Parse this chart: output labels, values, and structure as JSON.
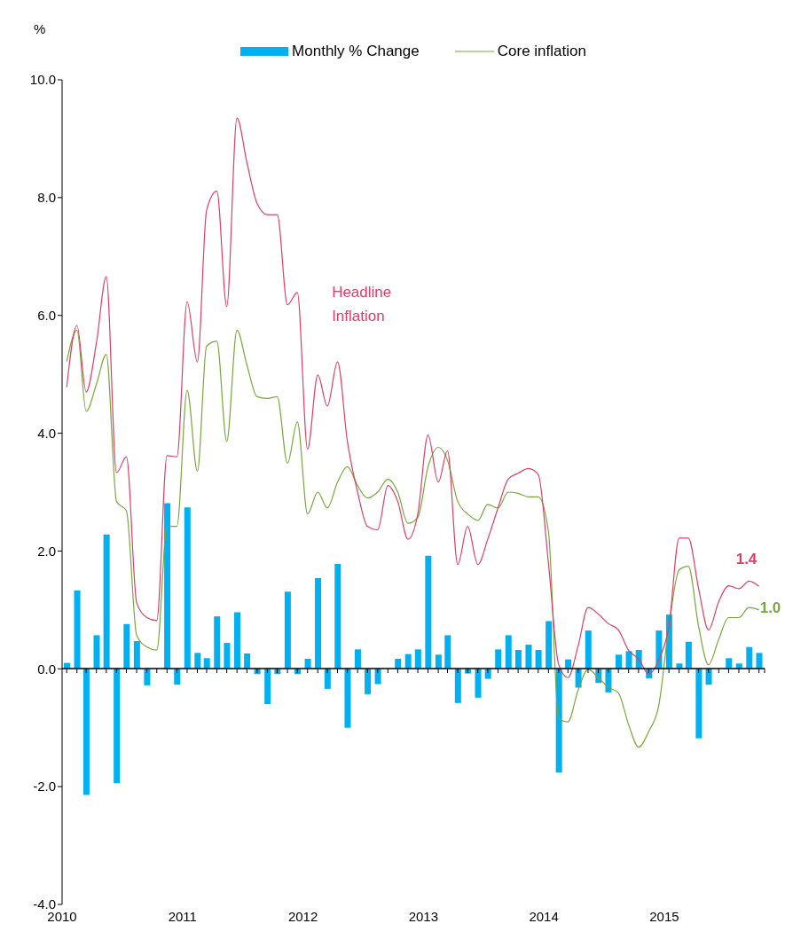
{
  "chart_data": {
    "type": "bar",
    "ylabel": "%",
    "x": [
      "2010-01-15",
      "2010-02-15",
      "2010-03-15",
      "2010-04-15",
      "2010-05-15",
      "2010-06-15",
      "2010-07-15",
      "2010-08-15",
      "2010-09-15",
      "2010-10-15",
      "2010-11-15",
      "2010-12-15",
      "2011-01-15",
      "2011-02-15",
      "2011-03-15",
      "2011-04-15",
      "2011-05-15",
      "2011-06-15",
      "2011-07-15",
      "2011-08-15",
      "2011-09-15",
      "2011-10-15",
      "2011-11-15",
      "2011-12-15",
      "2012-01-15",
      "2012-02-15",
      "2012-03-15",
      "2012-04-15",
      "2012-05-15",
      "2012-06-15",
      "2012-07-15",
      "2012-08-15",
      "2012-09-15",
      "2012-10-15",
      "2012-11-15",
      "2012-12-15",
      "2013-01-15",
      "2013-02-15",
      "2013-03-15",
      "2013-04-15",
      "2013-05-15",
      "2013-06-15",
      "2013-07-15",
      "2013-08-15",
      "2013-09-15",
      "2013-10-15",
      "2013-11-15",
      "2013-12-15",
      "2014-01-15",
      "2014-02-15",
      "2014-03-15",
      "2014-04-15",
      "2014-05-15",
      "2014-06-15",
      "2014-07-15",
      "2014-08-15",
      "2014-09-15",
      "2014-10-15",
      "2014-11-15",
      "2014-12-15",
      "2015-01-15",
      "2015-02-15",
      "2015-03-15",
      "2015-04-15",
      "2015-05-15",
      "2015-06-15",
      "2015-07-15",
      "2015-08-15",
      "2015-09-15",
      "2015-10-15"
    ],
    "series": [
      {
        "name": "Monthly % Change",
        "color": "#00b0f0",
        "values": [
          0.1,
          1.33,
          -2.14,
          0.57,
          2.28,
          -1.94,
          0.76,
          0.47,
          -0.28,
          0,
          2.81,
          -0.27,
          2.74,
          0.27,
          0.18,
          0.89,
          0.44,
          0.96,
          0.26,
          -0.09,
          -0.6,
          -0.09,
          1.31,
          -0.09,
          0.17,
          1.54,
          -0.34,
          1.78,
          -1.0,
          0.33,
          -0.43,
          -0.26,
          0,
          0.17,
          0.25,
          0.33,
          1.92,
          0.24,
          0.57,
          -0.58,
          -0.08,
          -0.49,
          -0.17,
          0.33,
          0.57,
          0.32,
          0.41,
          0.32,
          0.81,
          -1.76,
          0.16,
          -0.32,
          0.65,
          -0.24,
          -0.4,
          0.24,
          0.3,
          0.32,
          -0.16,
          0.65,
          0.92,
          0.09,
          0.46,
          -1.18,
          -0.27,
          0,
          0.18,
          0.09,
          0.37,
          0.27
        ]
      },
      {
        "name": "Core inflation",
        "type": "line",
        "color": "#78a83c",
        "values": [
          5.22,
          5.75,
          4.37,
          4.83,
          5.34,
          2.84,
          2.68,
          0.57,
          0.37,
          0.32,
          2.42,
          2.42,
          4.73,
          3.35,
          5.48,
          5.56,
          3.86,
          5.75,
          5.16,
          4.62,
          4.59,
          4.62,
          3.49,
          4.19,
          2.63,
          3.0,
          2.73,
          3.17,
          3.43,
          3.11,
          2.9,
          3.0,
          3.22,
          3.0,
          2.47,
          2.57,
          3.43,
          3.76,
          3.54,
          2.84,
          2.63,
          2.52,
          2.79,
          2.73,
          3.0,
          2.98,
          2.92,
          2.92,
          2.33,
          -0.85,
          -0.9,
          -0.36,
          -0.01,
          -0.15,
          -0.31,
          -0.41,
          -0.95,
          -1.33,
          -1.06,
          -0.63,
          0.72,
          1.68,
          1.74,
          0.72,
          0.07,
          0.5,
          0.87,
          0.87,
          1.04,
          1.0
        ]
      },
      {
        "name": "Headline Inflation",
        "type": "line",
        "color": "#dc4068",
        "values": [
          4.78,
          5.83,
          4.7,
          5.53,
          6.66,
          3.33,
          3.6,
          1.12,
          0.87,
          0.82,
          3.62,
          3.6,
          6.23,
          5.21,
          7.79,
          8.11,
          6.15,
          9.35,
          8.6,
          7.9,
          7.71,
          7.71,
          6.18,
          6.39,
          3.73,
          4.99,
          4.46,
          5.21,
          3.86,
          3.0,
          2.42,
          2.36,
          3.11,
          2.84,
          2.2,
          2.63,
          3.97,
          3.17,
          3.7,
          1.77,
          2.42,
          1.77,
          2.2,
          2.73,
          3.22,
          3.32,
          3.4,
          3.3,
          1.79,
          0.07,
          -0.15,
          0.39,
          1.04,
          0.93,
          0.77,
          0.66,
          0.31,
          0.17,
          -0.09,
          0.15,
          0.72,
          2.22,
          2.22,
          1.36,
          0.66,
          1.14,
          1.41,
          1.36,
          1.49,
          1.4
        ]
      }
    ],
    "annotations": [
      {
        "text": "1.4",
        "x": "2015-10-15",
        "y": 1.4
      },
      {
        "text": "1.0",
        "x": "2015-10-15",
        "y": 1.0
      }
    ],
    "xlim": [
      "2010-01",
      "2015-11"
    ],
    "xticks": [
      "2010",
      "2011",
      "2012",
      "2013",
      "2014",
      "2015"
    ],
    "ylim": [
      -4,
      10
    ],
    "yticks": [
      {
        "value": -4,
        "label": "-4.0"
      },
      {
        "value": -2,
        "label": "-2.0"
      },
      {
        "value": 0,
        "label": "0.0"
      },
      {
        "value": 2,
        "label": "2.0"
      },
      {
        "value": 4,
        "label": "4.0"
      },
      {
        "value": 6,
        "label": "6.0"
      },
      {
        "value": 8,
        "label": "8.0"
      },
      {
        "value": 10,
        "label": "10.0"
      }
    ],
    "legend": "top"
  }
}
